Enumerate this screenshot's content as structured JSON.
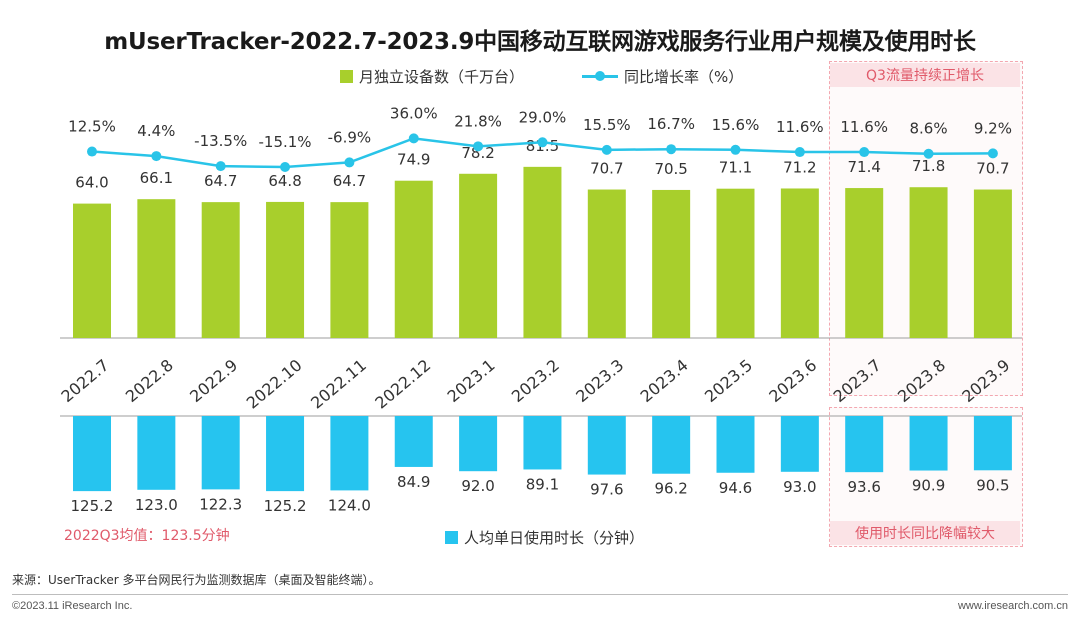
{
  "title": "mUserTracker-2022.7-2023.9中国移动互联网游戏服务行业用户规模及使用时长",
  "legend": {
    "bar_label": "月独立设备数（千万台）",
    "line_label": "同比增长率（%）",
    "duration_label": "人均单日使用时长（分钟）"
  },
  "highlight": {
    "top_text": "Q3流量持续正增长",
    "bottom_text": "使用时长同比降幅较大"
  },
  "note": "2022Q3均值：123.5分钟",
  "source": "来源：UserTracker 多平台网民行为监测数据库（桌面及智能终端）。",
  "copyright": "©2023.11 iResearch Inc.",
  "website": "www.iresearch.com.cn",
  "colors": {
    "bar": "#a8cf2c",
    "line": "#29c4e8",
    "duration": "#26c4ef",
    "highlight": "#e05a6a"
  },
  "chart_data": {
    "type": "bar",
    "categories": [
      "2022.7",
      "2022.8",
      "2022.9",
      "2022.10",
      "2022.11",
      "2022.12",
      "2023.1",
      "2023.2",
      "2023.3",
      "2023.4",
      "2023.5",
      "2023.6",
      "2023.7",
      "2023.8",
      "2023.9"
    ],
    "series": [
      {
        "name": "月独立设备数（千万台）",
        "type": "bar",
        "values": [
          64.0,
          66.1,
          64.7,
          64.8,
          64.7,
          74.9,
          78.2,
          81.5,
          70.7,
          70.5,
          71.1,
          71.2,
          71.4,
          71.8,
          70.7
        ],
        "labels": [
          "64.0",
          "66.1",
          "64.7",
          "64.8",
          "64.7",
          "74.9",
          "78.2",
          "81.5",
          "70.7",
          "70.5",
          "71.1",
          "71.2",
          "71.4",
          "71.8",
          "70.7"
        ]
      },
      {
        "name": "同比增长率（%）",
        "type": "line",
        "values": [
          12.5,
          4.4,
          -13.5,
          -15.1,
          -6.9,
          36.0,
          21.8,
          29.0,
          15.5,
          16.7,
          15.6,
          11.6,
          11.6,
          8.6,
          9.2
        ],
        "labels": [
          "12.5%",
          "4.4%",
          "-13.5%",
          "-15.1%",
          "-6.9%",
          "36.0%",
          "21.8%",
          "29.0%",
          "15.5%",
          "16.7%",
          "15.6%",
          "11.6%",
          "11.6%",
          "8.6%",
          "9.2%"
        ]
      },
      {
        "name": "人均单日使用时长（分钟）",
        "type": "bar",
        "values": [
          125.2,
          123.0,
          122.3,
          125.2,
          124.0,
          84.9,
          92.0,
          89.1,
          97.6,
          96.2,
          94.6,
          93.0,
          93.6,
          90.9,
          90.5
        ],
        "labels": [
          "125.2",
          "123.0",
          "122.3",
          "125.2",
          "124.0",
          "84.9",
          "92.0",
          "89.1",
          "97.6",
          "96.2",
          "94.6",
          "93.0",
          "93.6",
          "90.9",
          "90.5"
        ]
      }
    ],
    "highlighted_categories": [
      "2023.7",
      "2023.8",
      "2023.9"
    ]
  }
}
